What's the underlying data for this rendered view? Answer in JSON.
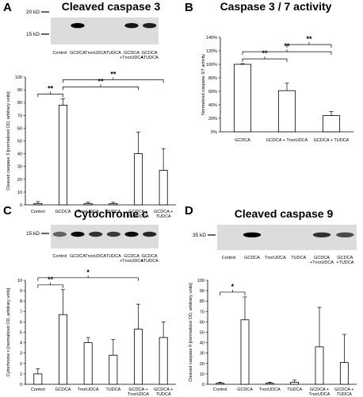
{
  "panel_labels": [
    "A",
    "B",
    "C",
    "D"
  ],
  "chart_data": [
    {
      "type": "bar",
      "panel": "A",
      "title": "Cleaved caspase 3",
      "blot": {
        "kd_labels": [
          "20 kD",
          "15 kD"
        ],
        "lanes": [
          "Control",
          "GCDCA",
          "TnorUDCA",
          "TUDCA",
          "GCDCA\n+TnorUDCA",
          "GCDCA\n+TUDCA"
        ],
        "lane_intensity": [
          0.0,
          1.0,
          0.0,
          0.0,
          0.9,
          0.85
        ]
      },
      "categories": [
        "Control",
        "GCDCA",
        "TnorUDCA",
        "TUDCA",
        "GCDCA +\nTnorUDCA",
        "GCDCA +\nTUDCA"
      ],
      "values": [
        1,
        78,
        1,
        1,
        40,
        27
      ],
      "errors": [
        1.5,
        5,
        1,
        1,
        17,
        17
      ],
      "ylabel": "Cleaved caspase 3 [normalized OD, arbitrary units]",
      "ylim": [
        0,
        100
      ],
      "yticks": [
        0,
        10,
        20,
        30,
        40,
        50,
        60,
        70,
        80,
        90,
        100
      ],
      "grid": false,
      "significance": [
        {
          "from": 0,
          "to": 1,
          "label": "**"
        },
        {
          "from": 1,
          "to": 4,
          "label": "**"
        },
        {
          "from": 1,
          "to": 5,
          "label": "**"
        }
      ]
    },
    {
      "type": "bar",
      "panel": "B",
      "title": "Caspase 3 / 7 activity",
      "categories": [
        "GCDCA",
        "GCDCA + TnorUDCA",
        "GCDCA + TUDCA"
      ],
      "values": [
        100,
        61,
        24
      ],
      "errors": [
        1,
        11,
        6
      ],
      "ylabel": "Normalized caspase 3/7 activity",
      "ylim": [
        0,
        140
      ],
      "yticks": [
        0,
        20,
        40,
        60,
        80,
        100,
        120,
        140
      ],
      "tick_suffix": "%",
      "grid": false,
      "significance": [
        {
          "from": 0,
          "to": 1,
          "label": "**"
        },
        {
          "from": 0,
          "to": 2,
          "label": "**"
        },
        {
          "from": 1,
          "to": 2,
          "label": "**"
        }
      ]
    },
    {
      "type": "bar",
      "panel": "C",
      "title": "Cytochrome c",
      "blot": {
        "kd_labels": [
          "15 kD"
        ],
        "lanes": [
          "Control",
          "GCDCA",
          "TnorUDCA",
          "TUDCA",
          "GCDCA\n+TnorUDCA",
          "GCDCA\n+TUDCA"
        ],
        "lane_intensity": [
          0.45,
          0.95,
          0.75,
          0.7,
          0.95,
          0.8
        ]
      },
      "categories": [
        "Control",
        "GCDCA",
        "TnorUDCA",
        "TUDCA",
        "GCDCA +\nTnorUDCA",
        "GCDCA +\nTUDCA"
      ],
      "values": [
        1.0,
        6.7,
        4.0,
        2.8,
        5.3,
        4.5
      ],
      "errors": [
        0.5,
        2.4,
        0.5,
        1.5,
        2.4,
        1.5
      ],
      "ylabel": "Cytochrome c [normalized OD, arbitrary units]",
      "ylim": [
        0,
        10
      ],
      "yticks": [
        0,
        1,
        2,
        3,
        4,
        5,
        6,
        7,
        8,
        9,
        10
      ],
      "grid": false,
      "significance": [
        {
          "from": 0,
          "to": 1,
          "label": "**"
        },
        {
          "from": 0,
          "to": 4,
          "label": "*"
        }
      ]
    },
    {
      "type": "bar",
      "panel": "D",
      "title": "Cleaved caspase 9",
      "blot": {
        "kd_labels": [
          "35 kD"
        ],
        "lanes": [
          "Control",
          "GCDCA",
          "TnorUDCA",
          "TUDCA",
          "GCDCA\n+TnorUDCA",
          "GCDCA\n+TUDCA"
        ],
        "lane_intensity": [
          0.0,
          1.0,
          0.0,
          0.0,
          0.75,
          0.6
        ]
      },
      "categories": [
        "Control",
        "GCDCA",
        "TnorUDCA",
        "TUDCA",
        "GCDCA +\nTnorUDCA",
        "GCDCA +\nTUDCA"
      ],
      "values": [
        1,
        62,
        1,
        2,
        36,
        21
      ],
      "errors": [
        1,
        22,
        1,
        2,
        38,
        27
      ],
      "ylabel": "Cleaved caspase 9 [normalized OD, arbitrary units]",
      "ylim": [
        0,
        100
      ],
      "yticks": [
        0,
        10,
        20,
        30,
        40,
        50,
        60,
        70,
        80,
        90,
        100
      ],
      "grid": false,
      "significance": [
        {
          "from": 0,
          "to": 1,
          "label": "*"
        }
      ]
    }
  ]
}
